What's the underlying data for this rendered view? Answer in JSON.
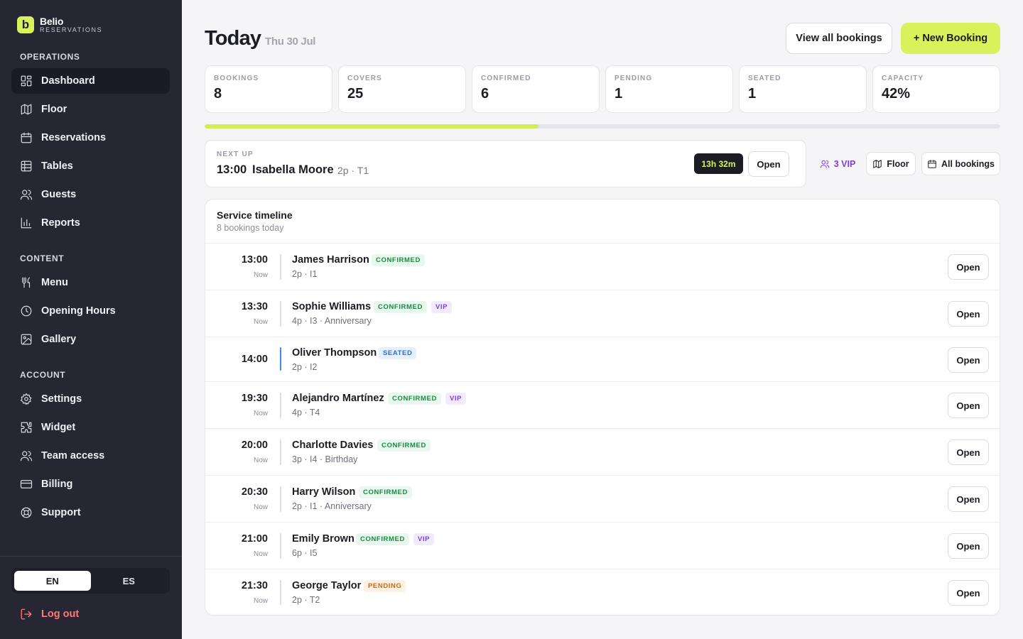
{
  "brand": {
    "logo_letter": "b",
    "name": "Belio",
    "subtitle": "RESERVATIONS"
  },
  "sidebar": {
    "sections": [
      {
        "title": "OPERATIONS"
      },
      {
        "title": "CONTENT"
      },
      {
        "title": "ACCOUNT"
      }
    ],
    "items": [
      {
        "label": "Dashboard",
        "icon": "dashboard-icon"
      },
      {
        "label": "Floor",
        "icon": "map-icon"
      },
      {
        "label": "Reservations",
        "icon": "calendar-icon"
      },
      {
        "label": "Tables",
        "icon": "table-icon"
      },
      {
        "label": "Guests",
        "icon": "users-icon"
      },
      {
        "label": "Reports",
        "icon": "bar-chart-icon"
      },
      {
        "label": "Menu",
        "icon": "utensils-icon"
      },
      {
        "label": "Opening Hours",
        "icon": "clock-icon"
      },
      {
        "label": "Gallery",
        "icon": "image-icon"
      },
      {
        "label": "Settings",
        "icon": "gear-icon"
      },
      {
        "label": "Widget",
        "icon": "puzzle-icon"
      },
      {
        "label": "Team access",
        "icon": "users-icon"
      },
      {
        "label": "Billing",
        "icon": "credit-card-icon"
      },
      {
        "label": "Support",
        "icon": "lifebuoy-icon"
      }
    ],
    "active_item": "Dashboard",
    "languages": [
      "EN",
      "ES"
    ],
    "active_language": "EN",
    "logout_label": "Log out"
  },
  "header": {
    "title": "Today",
    "date": "Thu 30 Jul",
    "view_all_label": "View all bookings",
    "new_booking_label": "+ New Booking"
  },
  "stats": [
    {
      "label": "BOOKINGS",
      "value": "8"
    },
    {
      "label": "COVERS",
      "value": "25"
    },
    {
      "label": "CONFIRMED",
      "value": "6"
    },
    {
      "label": "PENDING",
      "value": "1"
    },
    {
      "label": "SEATED",
      "value": "1"
    },
    {
      "label": "CAPACITY",
      "value": "42%"
    }
  ],
  "capacity_fraction": 0.42,
  "next_up": {
    "label": "NEXT UP",
    "time": "13:00",
    "name": "Isabella Moore",
    "meta": "2p · T1",
    "countdown": "13h 32m",
    "open_label": "Open"
  },
  "quick_links": {
    "vip_label": "3 VIP",
    "floor_label": "Floor",
    "all_bookings_label": "All bookings"
  },
  "timeline": {
    "title": "Service timeline",
    "subtitle": "8 bookings today",
    "open_label": "Open",
    "bookings": [
      {
        "time": "13:00",
        "sub": "Now",
        "name": "James Harrison",
        "status": "CONFIRMED",
        "vip": "",
        "meta": "2p · I1"
      },
      {
        "time": "13:30",
        "sub": "Now",
        "name": "Sophie Williams",
        "status": "CONFIRMED",
        "vip": "VIP",
        "meta": "4p · I3 · Anniversary"
      },
      {
        "time": "14:00",
        "sub": "",
        "name": "Oliver Thompson",
        "status": "SEATED",
        "vip": "",
        "meta": "2p · I2"
      },
      {
        "time": "19:30",
        "sub": "Now",
        "name": "Alejandro Martínez",
        "status": "CONFIRMED",
        "vip": "VIP",
        "meta": "4p · T4"
      },
      {
        "time": "20:00",
        "sub": "Now",
        "name": "Charlotte Davies",
        "status": "CONFIRMED",
        "vip": "",
        "meta": "3p · I4 · Birthday"
      },
      {
        "time": "20:30",
        "sub": "Now",
        "name": "Harry Wilson",
        "status": "CONFIRMED",
        "vip": "",
        "meta": "2p · I1 · Anniversary"
      },
      {
        "time": "21:00",
        "sub": "Now",
        "name": "Emily Brown",
        "status": "CONFIRMED",
        "vip": "VIP",
        "meta": "6p · I5"
      },
      {
        "time": "21:30",
        "sub": "Now",
        "name": "George Taylor",
        "status": "PENDING",
        "vip": "",
        "meta": "2p · T2"
      }
    ]
  },
  "colors": {
    "accent": "#d9f25c",
    "sidebar_bg": "#262733",
    "confirmed": "#1a8a42",
    "seated": "#2a6fd4",
    "pending": "#c96a12",
    "vip": "#7b3fe4",
    "logout": "#ff7a7a"
  }
}
